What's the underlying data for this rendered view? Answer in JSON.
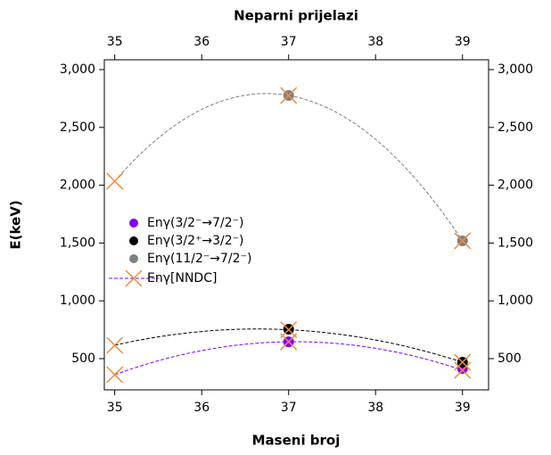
{
  "chart_data": {
    "type": "scatter",
    "title": "Neparni prijelazi",
    "x_label": "Maseni broj",
    "y_label": "E(keV)",
    "xlim": [
      34.88,
      39.3
    ],
    "xticks": [
      35,
      36,
      37,
      38,
      39
    ],
    "ylim": [
      230,
      3085
    ],
    "yticks": [
      500,
      {
        "value": 1000,
        "label": "1,000"
      },
      {
        "value": 1500,
        "label": "1,500"
      },
      {
        "value": 2000,
        "label": "2,000"
      },
      {
        "value": 2500,
        "label": "2,500"
      },
      {
        "value": 3000,
        "label": "3,000"
      }
    ],
    "series": [
      {
        "name": "Enγ(3/2⁻→7/2⁻)",
        "color": "#8000ff",
        "marker": "circle",
        "x": [
          37,
          39
        ],
        "values": [
          646,
          415
        ]
      },
      {
        "name": "Enγ(3/2⁺→3/2⁻)",
        "color": "#000000",
        "marker": "circle",
        "x": [
          37,
          39
        ],
        "values": [
          755,
          469
        ]
      },
      {
        "name": "Enγ(11/2⁻→7/2⁻)",
        "color": "#808080",
        "marker": "circle",
        "x": [
          37,
          39
        ],
        "values": [
          2776,
          1519
        ]
      },
      {
        "name": "Enγ[NNDC]",
        "color": "#f08c3c",
        "line_color": "#8000ff",
        "marker": "x",
        "x": [
          35,
          37,
          39,
          35,
          37,
          39,
          35,
          37,
          39
        ],
        "values": [
          361,
          646,
          400,
          616,
          750,
          469,
          2035,
          2776,
          1519
        ]
      }
    ]
  }
}
